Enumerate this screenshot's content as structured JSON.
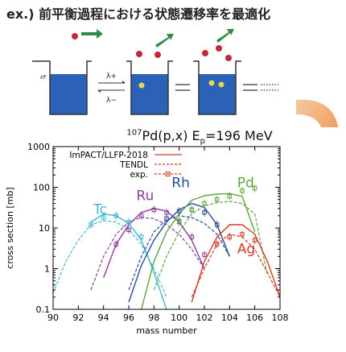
{
  "heading": "ex.) 前平衡過程における状態遷移率を最適化",
  "diagram": {
    "fermi_label": "εF",
    "lambda_plus": "λ+",
    "lambda_minus": "λ−",
    "colors": {
      "well": "#2b61b6",
      "proton": "#c8253a",
      "arrow": "#2f8c45",
      "hole": "#e9d84a",
      "frame": "#333333"
    }
  },
  "plot_title": {
    "mass": "107",
    "element": "Pd(p,x) E",
    "sub": "p",
    "value": "=196 MeV"
  },
  "chart_data": {
    "type": "line",
    "xlabel": "mass number",
    "ylabel": "cross section [mb]",
    "xlim": [
      90,
      108
    ],
    "ylim": [
      0.1,
      1000
    ],
    "yscale": "log",
    "xticks": [
      "90",
      "92",
      "94",
      "96",
      "98",
      "100",
      "102",
      "104",
      "106",
      "108"
    ],
    "yticks": [
      "0.1",
      "1",
      "10",
      "100",
      "1000"
    ],
    "legend": {
      "placement": "top-left",
      "entries": [
        "ImPACT/LLFP-2018",
        "TENDL",
        "exp."
      ]
    },
    "series": [
      {
        "name": "Tc",
        "color": "#41b8d6",
        "label_pos": [
          93.2,
          22
        ],
        "impact": [
          [
            93,
            14
          ],
          [
            94,
            22
          ],
          [
            95,
            20
          ],
          [
            96,
            13
          ],
          [
            97,
            5
          ],
          [
            98,
            0.8
          ],
          [
            99,
            0.1
          ]
        ],
        "tendl": [
          [
            90,
            0.25
          ],
          [
            91,
            1.5
          ],
          [
            92,
            5
          ],
          [
            93,
            12
          ],
          [
            94,
            15
          ],
          [
            95,
            14
          ],
          [
            96,
            9
          ],
          [
            97,
            4
          ],
          [
            98,
            1
          ],
          [
            99,
            0.2
          ]
        ],
        "exp": [
          [
            93,
            12
          ],
          [
            94,
            18
          ],
          [
            95,
            20
          ],
          [
            96,
            14
          ],
          [
            97,
            6
          ]
        ]
      },
      {
        "name": "Ru",
        "color": "#8e3d9c",
        "label_pos": [
          96.6,
          48
        ],
        "impact": [
          [
            94,
            0.6
          ],
          [
            95,
            4
          ],
          [
            96,
            12
          ],
          [
            97,
            24
          ],
          [
            98,
            30
          ],
          [
            99,
            26
          ],
          [
            100,
            14
          ],
          [
            101,
            5
          ],
          [
            102,
            1
          ]
        ],
        "tendl": [
          [
            93,
            0.3
          ],
          [
            94,
            2
          ],
          [
            95,
            7
          ],
          [
            96,
            14
          ],
          [
            97,
            18
          ],
          [
            98,
            17
          ],
          [
            99,
            12
          ],
          [
            100,
            7
          ],
          [
            101,
            3
          ],
          [
            102,
            1
          ]
        ],
        "exp": [
          [
            95,
            4
          ],
          [
            96,
            9
          ],
          [
            97,
            20
          ],
          [
            98,
            28
          ],
          [
            99,
            24
          ],
          [
            100,
            14
          ],
          [
            101,
            6
          ],
          [
            102,
            2.2
          ]
        ]
      },
      {
        "name": "Rh",
        "color": "#2a4a9a",
        "label_pos": [
          99.4,
          100
        ],
        "impact": [
          [
            96,
            0.15
          ],
          [
            97,
            1.2
          ],
          [
            98,
            5
          ],
          [
            99,
            14
          ],
          [
            100,
            28
          ],
          [
            101,
            40
          ],
          [
            102,
            32
          ],
          [
            103,
            12
          ],
          [
            104,
            2
          ]
        ],
        "tendl": [
          [
            96,
            0.3
          ],
          [
            97,
            2
          ],
          [
            98,
            8
          ],
          [
            99,
            16
          ],
          [
            100,
            20
          ],
          [
            101,
            18
          ],
          [
            102,
            13
          ],
          [
            103,
            7
          ],
          [
            104,
            2
          ]
        ],
        "exp": [
          [
            99,
            17
          ],
          [
            100,
            26
          ],
          [
            101,
            28
          ],
          [
            102,
            24
          ],
          [
            103,
            12
          ]
        ]
      },
      {
        "name": "Pd",
        "color": "#5aa73b",
        "label_pos": [
          104.6,
          100
        ],
        "impact": [
          [
            97,
            0.1
          ],
          [
            98,
            1.5
          ],
          [
            99,
            8
          ],
          [
            100,
            22
          ],
          [
            101,
            48
          ],
          [
            102,
            62
          ],
          [
            103,
            68
          ],
          [
            104,
            70
          ],
          [
            105,
            60
          ],
          [
            106,
            8
          ]
        ],
        "tendl": [
          [
            98,
            0.3
          ],
          [
            99,
            2
          ],
          [
            100,
            8
          ],
          [
            101,
            22
          ],
          [
            102,
            35
          ],
          [
            103,
            42
          ],
          [
            104,
            45
          ],
          [
            105,
            40
          ],
          [
            106,
            22
          ],
          [
            107,
            0.7
          ]
        ],
        "exp": [
          [
            100,
            15
          ],
          [
            101,
            28
          ],
          [
            102,
            40
          ],
          [
            103,
            50
          ],
          [
            104,
            60
          ],
          [
            105,
            82
          ],
          [
            106,
            95
          ]
        ]
      },
      {
        "name": "Ag",
        "color": "#d03a22",
        "label_pos": [
          104.6,
          2.4
        ],
        "impact": [
          [
            101,
            0.15
          ],
          [
            102,
            1.5
          ],
          [
            103,
            6
          ],
          [
            104,
            12
          ],
          [
            105,
            12
          ],
          [
            106,
            7
          ],
          [
            107,
            1.5
          ],
          [
            108,
            0.2
          ]
        ],
        "tendl": [
          [
            101,
            0.2
          ],
          [
            102,
            1
          ],
          [
            103,
            4
          ],
          [
            104,
            7
          ],
          [
            105,
            6
          ],
          [
            106,
            3
          ],
          [
            107,
            0.8
          ],
          [
            108,
            0.2
          ]
        ],
        "exp": [
          [
            103,
            4
          ],
          [
            104,
            6
          ],
          [
            105,
            7
          ],
          [
            106,
            5
          ]
        ]
      }
    ]
  }
}
